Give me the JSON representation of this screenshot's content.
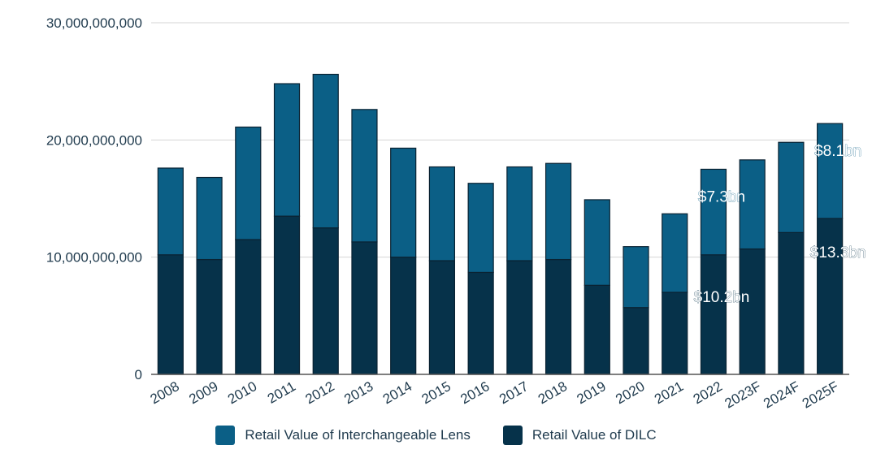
{
  "chart_data": {
    "type": "bar",
    "stacked": true,
    "categories": [
      "2008",
      "2009",
      "2010",
      "2011",
      "2012",
      "2013",
      "2014",
      "2015",
      "2016",
      "2017",
      "2018",
      "2019",
      "2020",
      "2021",
      "2022",
      "2023F",
      "2024F",
      "2025F"
    ],
    "series": [
      {
        "name": "Retail Value of DILC",
        "color": "#06324a",
        "values": [
          10200000000,
          9800000000,
          11500000000,
          13500000000,
          12500000000,
          11300000000,
          10000000000,
          9700000000,
          8700000000,
          9700000000,
          9800000000,
          7600000000,
          5700000000,
          7000000000,
          10200000000,
          10700000000,
          12100000000,
          13300000000
        ]
      },
      {
        "name": "Retail Value of Interchangeable Lens",
        "color": "#0b5f86",
        "values": [
          7400000000,
          7000000000,
          9600000000,
          11300000000,
          13100000000,
          11300000000,
          9300000000,
          8000000000,
          7600000000,
          8000000000,
          8200000000,
          7300000000,
          5200000000,
          6700000000,
          7300000000,
          7600000000,
          7700000000,
          8100000000
        ]
      }
    ],
    "ylim": [
      0,
      30000000000
    ],
    "yticks": [
      0,
      10000000000,
      20000000000,
      30000000000
    ],
    "ytick_labels": [
      "0",
      "10,000,000,000",
      "20,000,000,000",
      "30,000,000,000"
    ],
    "grid": true,
    "legend_position": "bottom",
    "annotations": [
      {
        "text": "$10.2bn",
        "category": "2022",
        "series": "Retail Value of DILC"
      },
      {
        "text": "$7.3bn",
        "category": "2022",
        "series": "Retail Value of Interchangeable Lens"
      },
      {
        "text": "$13.3bn",
        "category": "2025F",
        "series": "Retail Value of DILC"
      },
      {
        "text": "$8.1bn",
        "category": "2025F",
        "series": "Retail Value of Interchangeable Lens"
      }
    ]
  },
  "legend": {
    "items": [
      {
        "label": "Retail Value of Interchangeable Lens",
        "color": "#0b5f86"
      },
      {
        "label": "Retail Value of DILC",
        "color": "#06324a"
      }
    ]
  }
}
